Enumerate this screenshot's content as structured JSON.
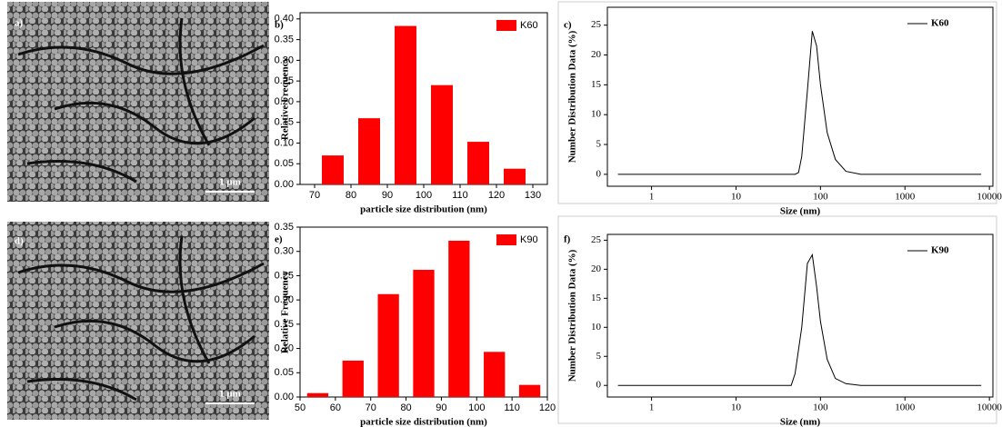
{
  "images": [
    {
      "panel": "a)",
      "scale_bar": "1 μm"
    },
    {
      "panel": "d)",
      "scale_bar": "1 μm"
    }
  ],
  "chart_data": [
    {
      "panel": "b)",
      "type": "bar",
      "xlabel": "particle size distribution (nm)",
      "ylabel": "Relative Frequency",
      "x": [
        75,
        85,
        95,
        105,
        115,
        125
      ],
      "series": [
        {
          "name": "K60",
          "color": "#ff0000",
          "values": [
            0.07,
            0.16,
            0.383,
            0.24,
            0.103,
            0.038
          ]
        }
      ],
      "xlim": [
        66,
        134
      ],
      "xticks": [
        70,
        80,
        90,
        100,
        110,
        120,
        130
      ],
      "ylim": [
        0,
        0.415
      ],
      "yticks": [
        {
          "value": 0,
          "label": "0.00"
        },
        {
          "value": 0.05,
          "label": "0.05"
        },
        {
          "value": 0.1,
          "label": "0.10"
        },
        {
          "value": 0.15,
          "label": "0.15"
        },
        {
          "value": 0.2,
          "label": "0.20"
        },
        {
          "value": 0.25,
          "label": "0.25"
        },
        {
          "value": 0.3,
          "label": "0.30"
        },
        {
          "value": 0.35,
          "label": "0.35"
        },
        {
          "value": 0.4,
          "label": "0.40"
        }
      ]
    },
    {
      "panel": "c)",
      "type": "line",
      "xlabel": "Size (nm)",
      "ylabel": "Number Distribution Data (%)",
      "xscale": "log",
      "x": [
        0.4,
        50,
        55,
        60,
        70,
        80,
        90,
        100,
        120,
        150,
        200,
        300,
        8000
      ],
      "series": [
        {
          "name": "K60",
          "color": "#000000",
          "values": [
            0,
            0,
            0.3,
            3,
            14,
            24,
            21.5,
            15,
            7,
            2.5,
            0.5,
            0,
            0
          ]
        }
      ],
      "xlim": [
        0.3,
        11000
      ],
      "xticks": [
        1,
        10,
        100,
        1000,
        10000
      ],
      "ylim": [
        -2,
        28
      ],
      "yticks": [
        0,
        5,
        10,
        15,
        20,
        25
      ]
    },
    {
      "panel": "e)",
      "type": "bar",
      "xlabel": "particle size distribution (nm)",
      "ylabel": "Relative Frequency",
      "x": [
        55,
        65,
        75,
        85,
        95,
        105,
        115
      ],
      "series": [
        {
          "name": "K90",
          "color": "#ff0000",
          "values": [
            0.008,
            0.075,
            0.212,
            0.262,
            0.322,
            0.093,
            0.025
          ]
        }
      ],
      "xlim": [
        50,
        120
      ],
      "xticks": [
        50,
        60,
        70,
        80,
        90,
        100,
        110,
        120
      ],
      "ylim": [
        0,
        0.35
      ],
      "yticks": [
        {
          "value": 0,
          "label": "0.00"
        },
        {
          "value": 0.05,
          "label": "0.05"
        },
        {
          "value": 0.1,
          "label": "0.10"
        },
        {
          "value": 0.15,
          "label": "0.15"
        },
        {
          "value": 0.2,
          "label": "0.20"
        },
        {
          "value": 0.25,
          "label": "0.25"
        },
        {
          "value": 0.3,
          "label": "0.30"
        },
        {
          "value": 0.35,
          "label": "0.35"
        }
      ]
    },
    {
      "panel": "f)",
      "type": "line",
      "xlabel": "Size (nm)",
      "ylabel": "Number Distribution Data (%)",
      "xscale": "log",
      "x": [
        0.4,
        45,
        50,
        60,
        70,
        80,
        90,
        100,
        120,
        150,
        200,
        300,
        8000
      ],
      "series": [
        {
          "name": "K90",
          "color": "#000000",
          "values": [
            0,
            0,
            2,
            10,
            21,
            22.5,
            17,
            11,
            4.5,
            1.2,
            0.3,
            0,
            0
          ]
        }
      ],
      "xlim": [
        0.3,
        11000
      ],
      "xticks": [
        1,
        10,
        100,
        1000,
        10000
      ],
      "ylim": [
        -2,
        26
      ],
      "yticks": [
        0,
        5,
        10,
        15,
        20,
        25
      ]
    }
  ]
}
